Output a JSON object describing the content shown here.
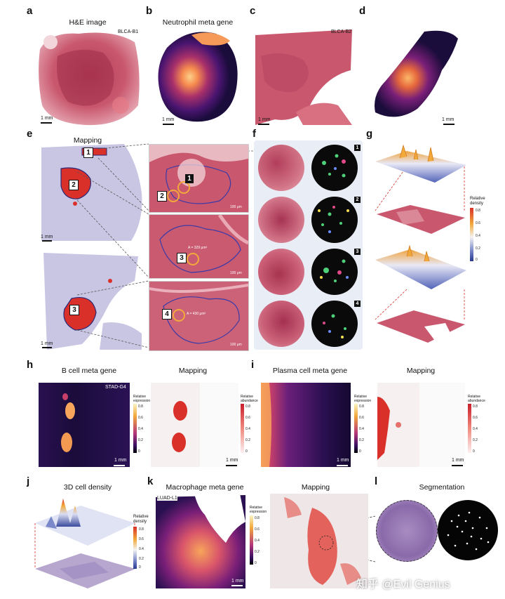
{
  "panels": {
    "a": {
      "letter": "a",
      "title": "H&E image",
      "sample": "BLCA-B1",
      "scale": "1 mm"
    },
    "b": {
      "letter": "b",
      "title": "Neutrophil meta gene",
      "scale": "1 mm"
    },
    "c": {
      "letter": "c",
      "sample": "BLCA-B2",
      "scale": "1 mm"
    },
    "d": {
      "letter": "d",
      "scale": "1 mm"
    },
    "e": {
      "letter": "e",
      "title": "Mapping",
      "scale_top": "1 mm",
      "scale_bottom": "1 mm",
      "region_labels": [
        "1",
        "2",
        "3",
        "4"
      ],
      "inset_scales": [
        "100 μm",
        "100 μm",
        "100 μm"
      ],
      "area_labels": [
        "A = 329 μm²",
        "A = 430 μm²"
      ]
    },
    "f": {
      "letter": "f",
      "rows": [
        "1",
        "2",
        "3",
        "4"
      ]
    },
    "g": {
      "letter": "g",
      "colorbar_label": "Relative density",
      "ticks": [
        "0.8",
        "0.6",
        "0.4",
        "0.2",
        "0"
      ]
    },
    "h": {
      "letter": "h",
      "title_left": "B cell meta gene",
      "title_right": "Mapping",
      "sample": "STAD-G4",
      "cbar_left": "Relative expression",
      "cbar_right": "Relative abundance",
      "scale": "1 mm",
      "ticks": [
        "0.8",
        "0.6",
        "0.4",
        "0.2",
        "0"
      ]
    },
    "i": {
      "letter": "i",
      "title_left": "Plasma cell meta gene",
      "title_right": "Mapping",
      "cbar_left": "Relative expression",
      "cbar_right": "Relative abundance",
      "scale": "1 mm",
      "ticks": [
        "0.8",
        "0.6",
        "0.4",
        "0.2",
        "0"
      ]
    },
    "j": {
      "letter": "j",
      "title": "3D cell density",
      "colorbar_label": "Relative density",
      "ticks": [
        "0.8",
        "0.6",
        "0.4",
        "0.2",
        "0"
      ]
    },
    "k": {
      "letter": "k",
      "title_left": "Macrophage meta gene",
      "title_right": "Mapping",
      "sample": "LUAD-L1",
      "cbar": "Relative expression",
      "scale": "1 mm",
      "ticks": [
        "0.8",
        "0.6",
        "0.4",
        "0.2",
        "0"
      ]
    },
    "l": {
      "letter": "l",
      "title": "Segmentation"
    }
  },
  "watermark": "知乎 @Evil Genius",
  "colors": {
    "he_pink": "#c9586e",
    "magma_dark": "#1a0c3b",
    "magma_bright": "#f9a253",
    "map_red": "#d9302a"
  }
}
